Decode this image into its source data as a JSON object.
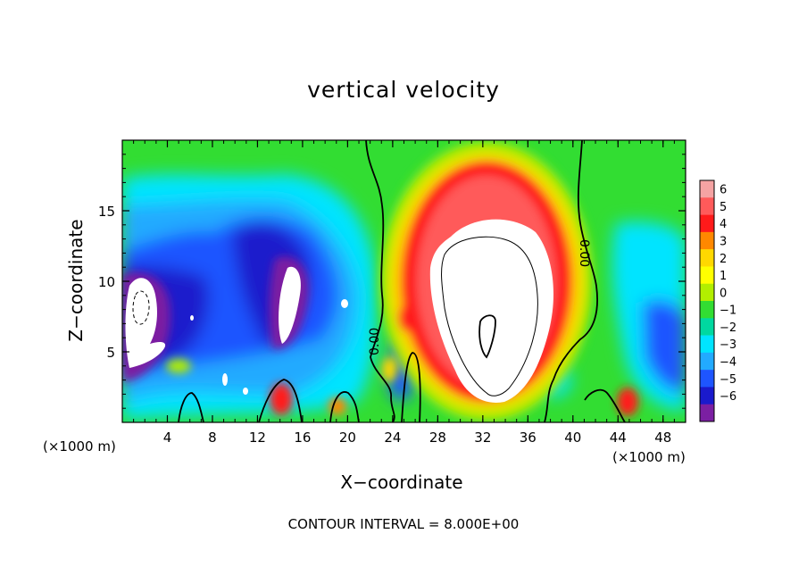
{
  "chart_data": {
    "type": "heatmap",
    "title": "vertical velocity",
    "xlabel": "X−coordinate",
    "ylabel": "Z−coordinate",
    "x_unit": "(×1000 m)",
    "z_unit": "(×1000 m)",
    "xlim": [
      0,
      50
    ],
    "ylim": [
      0,
      20
    ],
    "x_ticks": [
      4,
      8,
      12,
      16,
      20,
      24,
      28,
      32,
      36,
      40,
      44,
      48
    ],
    "y_ticks": [
      5,
      10,
      15
    ],
    "colorbar": {
      "levels": [
        "6",
        "5",
        "4",
        "3",
        "2",
        "1",
        "0",
        "−1",
        "−2",
        "−3",
        "−4",
        "−5",
        "−6"
      ],
      "colors": [
        "#f5a3a3",
        "#ff5a5a",
        "#ff1a1a",
        "#ff8800",
        "#ffd800",
        "#ffff00",
        "#b2ee00",
        "#32dd32",
        "#00d8a0",
        "#00e4ff",
        "#22aaff",
        "#1e55ff",
        "#1a1acc",
        "#7b1fa2"
      ]
    },
    "contour_labels": [
      "0.00",
      "0.00",
      "0.00"
    ],
    "contour_interval_text": "CONTOUR INTERVAL = 8.000E+00",
    "features": [
      {
        "x": 31.5,
        "z": 9.5,
        "value": 6
      },
      {
        "x": 1.5,
        "z": 7.5,
        "value": -6
      },
      {
        "x": 15,
        "z": 9,
        "value": -6
      },
      {
        "x": 14,
        "z": 1.6,
        "value": 4
      },
      {
        "x": 44.8,
        "z": 1.5,
        "value": 4
      }
    ]
  }
}
